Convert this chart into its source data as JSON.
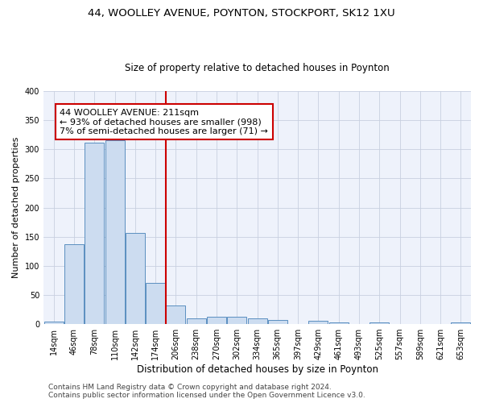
{
  "title_line1": "44, WOOLLEY AVENUE, POYNTON, STOCKPORT, SK12 1XU",
  "title_line2": "Size of property relative to detached houses in Poynton",
  "xlabel": "Distribution of detached houses by size in Poynton",
  "ylabel": "Number of detached properties",
  "bar_color": "#ccdcf0",
  "bar_edge_color": "#5a8fc0",
  "categories": [
    "14sqm",
    "46sqm",
    "78sqm",
    "110sqm",
    "142sqm",
    "174sqm",
    "206sqm",
    "238sqm",
    "270sqm",
    "302sqm",
    "334sqm",
    "365sqm",
    "397sqm",
    "429sqm",
    "461sqm",
    "493sqm",
    "525sqm",
    "557sqm",
    "589sqm",
    "621sqm",
    "653sqm"
  ],
  "values": [
    4,
    137,
    311,
    315,
    157,
    71,
    32,
    10,
    13,
    13,
    10,
    7,
    0,
    5,
    3,
    0,
    3,
    0,
    0,
    0,
    3
  ],
  "vline_x": 5.5,
  "vline_color": "#cc0000",
  "annotation_text": "44 WOOLLEY AVENUE: 211sqm\n← 93% of detached houses are smaller (998)\n7% of semi-detached houses are larger (71) →",
  "ylim": [
    0,
    400
  ],
  "yticks": [
    0,
    50,
    100,
    150,
    200,
    250,
    300,
    350,
    400
  ],
  "grid_color": "#c8d0e0",
  "background_color": "#eef2fb",
  "footer_line1": "Contains HM Land Registry data © Crown copyright and database right 2024.",
  "footer_line2": "Contains public sector information licensed under the Open Government Licence v3.0.",
  "title_fontsize": 9.5,
  "subtitle_fontsize": 8.5,
  "xlabel_fontsize": 8.5,
  "ylabel_fontsize": 8,
  "tick_fontsize": 7,
  "annotation_fontsize": 8,
  "footer_fontsize": 6.5
}
